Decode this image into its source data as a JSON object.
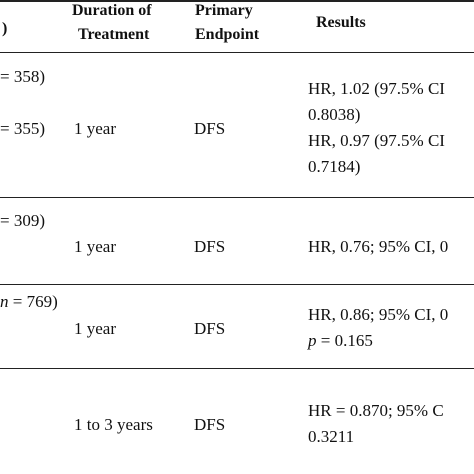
{
  "table": {
    "headers": {
      "col0": ")",
      "duration_l1": "Duration of",
      "duration_l2": "Treatment",
      "endpoint_l1": "Primary",
      "endpoint_l2": "Endpoint",
      "results": "Results"
    },
    "rows": [
      {
        "arm_a": "= 358)",
        "arm_b": "= 355)",
        "duration": "1 year",
        "endpoint": "DFS",
        "results": [
          "HR, 1.02 (97.5% CI",
          "0.8038)",
          "HR, 0.97 (97.5% CI",
          "0.7184)"
        ]
      },
      {
        "arm_a": "= 309)",
        "duration": "1 year",
        "endpoint": "DFS",
        "results": [
          "HR, 0.76; 95% CI, 0"
        ]
      },
      {
        "arm_a_italic": "n",
        "arm_a_rest": " = 769)",
        "duration": "1 year",
        "endpoint": "DFS",
        "results": [
          "HR, 0.86; 95% CI, 0"
        ],
        "p_italic": "p",
        "p_rest": " = 0.165"
      },
      {
        "duration": "1 to 3 years",
        "endpoint": "DFS",
        "results": [
          "HR  =  0.870; 95% C",
          "0.3211"
        ]
      }
    ]
  }
}
